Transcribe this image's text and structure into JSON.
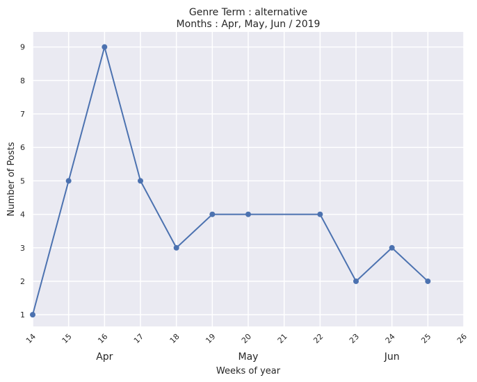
{
  "chart_data": {
    "type": "line",
    "title_line1": "Genre Term : alternative",
    "title_line2": "Months : Apr, May, Jun / 2019",
    "xlabel": "Weeks of year",
    "ylabel": "Number of Posts",
    "x": [
      14,
      15,
      16,
      17,
      18,
      19,
      20,
      22,
      23,
      24,
      25
    ],
    "y": [
      1,
      5,
      9,
      5,
      3,
      4,
      4,
      4,
      2,
      3,
      2
    ],
    "xticks": [
      14,
      15,
      16,
      17,
      18,
      19,
      20,
      21,
      22,
      23,
      24,
      25,
      26
    ],
    "yticks": [
      1,
      2,
      3,
      4,
      5,
      6,
      7,
      8,
      9
    ],
    "xlim": [
      14,
      26
    ],
    "ylim": [
      0.65,
      9.45
    ],
    "month_labels": [
      {
        "label": "Apr",
        "week": 16
      },
      {
        "label": "May",
        "week": 20
      },
      {
        "label": "Jun",
        "week": 24
      }
    ],
    "grid": true,
    "line_color": "#4c72b0",
    "background_color": "#eaeaf2"
  }
}
